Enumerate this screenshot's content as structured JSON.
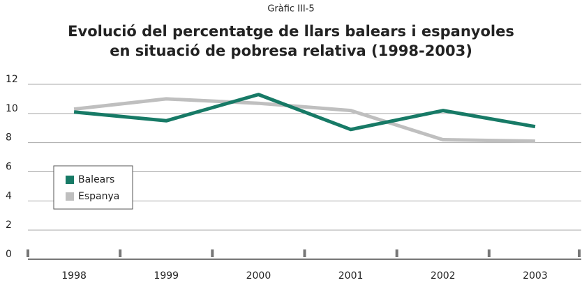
{
  "chart_data": {
    "type": "line",
    "supertitle": "Gràfic III-5",
    "title": [
      "Evolució del percentatge de llars balears i espanyoles",
      "en situació de pobresa relativa (1998-2003)"
    ],
    "categories": [
      "1998",
      "1999",
      "2000",
      "2001",
      "2002",
      "2003"
    ],
    "series": [
      {
        "name": "Balears",
        "color": "#177a66",
        "values": [
          10.1,
          9.5,
          11.3,
          8.9,
          10.2,
          9.1
        ]
      },
      {
        "name": "Espanya",
        "color": "#bfbfbf",
        "values": [
          10.3,
          11.0,
          10.7,
          10.2,
          8.2,
          8.1
        ]
      }
    ],
    "ylim": [
      0,
      12
    ],
    "yticks": [
      0,
      2,
      4,
      6,
      8,
      10,
      12
    ],
    "grid": true,
    "legend": "lower-left"
  }
}
